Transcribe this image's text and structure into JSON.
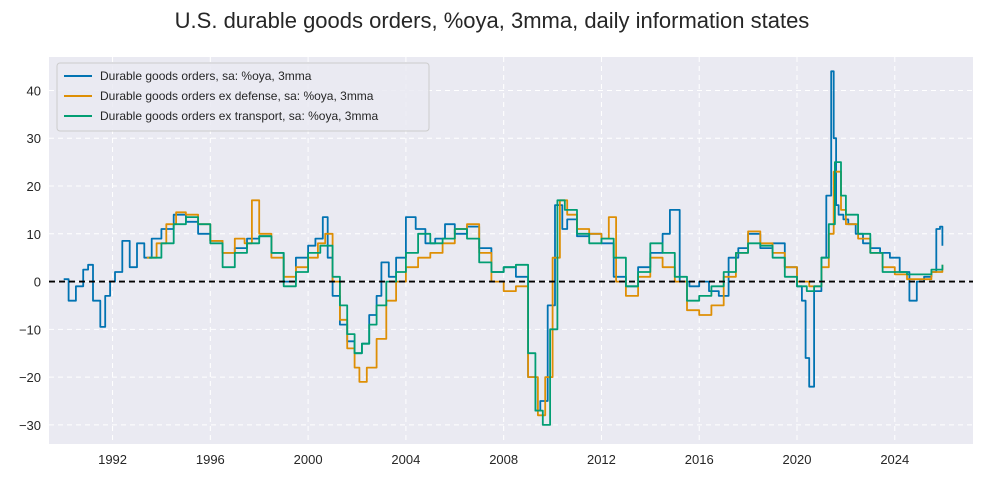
{
  "chart_data": {
    "type": "line",
    "title": "U.S. durable goods orders, %oya, 3mma, daily information states",
    "xlabel": "",
    "ylabel": "",
    "xlim": [
      1989.4,
      2027.2
    ],
    "ylim": [
      -34,
      47
    ],
    "x_ticks": [
      {
        "value": 1992,
        "label": "1992"
      },
      {
        "value": 1996,
        "label": "1996"
      },
      {
        "value": 2000,
        "label": "2000"
      },
      {
        "value": 2004,
        "label": "2004"
      },
      {
        "value": 2008,
        "label": "2008"
      },
      {
        "value": 2012,
        "label": "2012"
      },
      {
        "value": 2016,
        "label": "2016"
      },
      {
        "value": 2020,
        "label": "2020"
      },
      {
        "value": 2024,
        "label": "2024"
      }
    ],
    "y_ticks": [
      {
        "value": -30,
        "label": "−30"
      },
      {
        "value": -20,
        "label": "−20"
      },
      {
        "value": -10,
        "label": "−10"
      },
      {
        "value": 0,
        "label": "0"
      },
      {
        "value": 10,
        "label": "10"
      },
      {
        "value": 20,
        "label": "20"
      },
      {
        "value": 30,
        "label": "30"
      },
      {
        "value": 40,
        "label": "40"
      }
    ],
    "grid": true,
    "legend_position": "top-left",
    "reference_line": {
      "y": 0,
      "style": "dashed",
      "color": "#000000"
    },
    "series": [
      {
        "name": "Durable goods orders, sa: %oya, 3mma",
        "color": "#0173b2",
        "x": [
          1990.0,
          1990.2,
          1990.5,
          1990.8,
          1991.0,
          1991.2,
          1991.5,
          1991.7,
          1991.9,
          1992.1,
          1992.4,
          1992.7,
          1993.0,
          1993.3,
          1993.6,
          1994.0,
          1994.5,
          1995.0,
          1995.5,
          1996.0,
          1996.5,
          1997.0,
          1997.5,
          1998.0,
          1998.5,
          1999.0,
          1999.5,
          2000.0,
          2000.3,
          2000.6,
          2000.8,
          2001.0,
          2001.3,
          2001.6,
          2001.9,
          2002.2,
          2002.5,
          2002.8,
          2003.0,
          2003.3,
          2003.6,
          2004.0,
          2004.4,
          2004.8,
          2005.2,
          2005.6,
          2006.0,
          2006.5,
          2007.0,
          2007.5,
          2008.0,
          2008.5,
          2009.0,
          2009.3,
          2009.5,
          2009.8,
          2010.1,
          2010.4,
          2010.6,
          2011.0,
          2011.5,
          2012.0,
          2012.5,
          2013.0,
          2013.5,
          2014.0,
          2014.5,
          2014.8,
          2015.2,
          2015.6,
          2016.0,
          2016.4,
          2016.8,
          2017.2,
          2017.6,
          2018.0,
          2018.5,
          2019.0,
          2019.5,
          2020.0,
          2020.2,
          2020.35,
          2020.5,
          2020.7,
          2021.0,
          2021.2,
          2021.4,
          2021.5,
          2021.6,
          2021.7,
          2021.9,
          2022.1,
          2022.4,
          2022.7,
          2023.0,
          2023.4,
          2023.8,
          2024.2,
          2024.6,
          2024.9,
          2025.2,
          2025.5,
          2025.7,
          2025.85,
          2025.95
        ],
        "y": [
          0.5,
          -4.0,
          -1.0,
          2.5,
          3.5,
          -4.0,
          -9.5,
          -3.0,
          0.0,
          2.0,
          8.5,
          3.0,
          8.0,
          5.0,
          9.0,
          11.0,
          14.0,
          12.5,
          10.0,
          8.5,
          6.0,
          7.0,
          9.0,
          9.5,
          6.0,
          0.0,
          5.0,
          7.5,
          9.0,
          13.5,
          5.0,
          -3.0,
          -9.0,
          -12.5,
          -15.0,
          -13.0,
          -7.0,
          -3.0,
          4.0,
          1.0,
          5.0,
          13.5,
          11.0,
          8.0,
          9.0,
          12.0,
          10.0,
          11.5,
          7.0,
          2.0,
          3.0,
          1.0,
          -20.0,
          -27.0,
          -25.0,
          -5.0,
          16.0,
          11.0,
          13.0,
          9.5,
          10.0,
          8.0,
          1.0,
          -1.0,
          3.0,
          6.0,
          10.0,
          15.0,
          0.0,
          -1.0,
          0.0,
          -2.0,
          -3.0,
          5.0,
          7.0,
          10.0,
          7.0,
          8.0,
          3.0,
          -1.0,
          -4.0,
          -16.0,
          -22.0,
          -2.0,
          5.0,
          18.0,
          44.0,
          30.0,
          16.0,
          14.0,
          13.0,
          12.0,
          10.0,
          8.0,
          7.0,
          6.0,
          5.0,
          2.0,
          -4.0,
          0.0,
          1.0,
          2.0,
          11.0,
          11.5,
          7.5
        ]
      },
      {
        "name": "Durable goods orders ex defense, sa: %oya, 3mma",
        "color": "#de8f05",
        "x": [
          1993.4,
          1993.8,
          1994.2,
          1994.6,
          1995.0,
          1995.5,
          1996.0,
          1996.5,
          1997.0,
          1997.4,
          1997.7,
          1998.0,
          1998.5,
          1999.0,
          1999.5,
          2000.0,
          2000.4,
          2000.7,
          2001.0,
          2001.3,
          2001.6,
          2001.9,
          2002.1,
          2002.4,
          2002.8,
          2003.2,
          2003.6,
          2004.0,
          2004.5,
          2005.0,
          2005.5,
          2006.0,
          2006.5,
          2007.0,
          2007.5,
          2008.0,
          2008.5,
          2009.0,
          2009.4,
          2009.7,
          2010.0,
          2010.3,
          2010.6,
          2011.0,
          2011.5,
          2012.0,
          2012.3,
          2012.6,
          2013.0,
          2013.5,
          2014.0,
          2014.5,
          2015.0,
          2015.5,
          2016.0,
          2016.5,
          2017.0,
          2017.5,
          2018.0,
          2018.5,
          2019.0,
          2019.5,
          2020.0,
          2020.5,
          2020.8,
          2021.0,
          2021.3,
          2021.5,
          2021.8,
          2022.0,
          2022.5,
          2023.0,
          2023.5,
          2024.0,
          2024.5,
          2025.0,
          2025.5,
          2025.95
        ],
        "y": [
          5.0,
          8.0,
          12.0,
          14.5,
          14.0,
          12.0,
          8.5,
          6.0,
          9.0,
          8.0,
          17.0,
          10.0,
          5.0,
          1.0,
          3.0,
          5.0,
          8.0,
          10.0,
          0.0,
          -8.0,
          -14.0,
          -18.0,
          -21.0,
          -18.0,
          -12.0,
          -4.0,
          0.0,
          3.0,
          5.0,
          6.0,
          8.0,
          11.0,
          12.0,
          6.0,
          0.0,
          -2.0,
          -1.0,
          -20.0,
          -28.0,
          -20.0,
          5.0,
          17.0,
          14.0,
          11.0,
          10.0,
          9.0,
          13.5,
          0.0,
          -3.0,
          1.0,
          5.0,
          3.0,
          0.0,
          -6.0,
          -7.0,
          -5.0,
          1.0,
          6.0,
          10.5,
          8.0,
          6.0,
          3.0,
          0.0,
          -1.0,
          -1.0,
          3.0,
          10.0,
          23.0,
          15.0,
          12.0,
          9.0,
          6.0,
          3.0,
          1.5,
          0.5,
          0.5,
          2.0,
          3.5
        ]
      },
      {
        "name": "Durable goods orders ex transport, sa: %oya, 3mma",
        "color": "#029e73",
        "x": [
          1993.5,
          1994.0,
          1994.5,
          1995.0,
          1995.5,
          1996.0,
          1996.5,
          1997.0,
          1997.5,
          1998.0,
          1998.5,
          1999.0,
          1999.5,
          2000.0,
          2000.5,
          2001.0,
          2001.3,
          2001.6,
          2001.9,
          2002.2,
          2002.5,
          2002.8,
          2003.2,
          2003.6,
          2004.0,
          2004.5,
          2005.0,
          2005.5,
          2006.0,
          2006.5,
          2007.0,
          2007.5,
          2008.0,
          2008.5,
          2009.0,
          2009.3,
          2009.6,
          2009.9,
          2010.2,
          2010.5,
          2011.0,
          2011.5,
          2012.0,
          2012.5,
          2013.0,
          2013.5,
          2014.0,
          2014.5,
          2015.0,
          2015.5,
          2016.0,
          2016.5,
          2017.0,
          2017.5,
          2018.0,
          2018.5,
          2019.0,
          2019.5,
          2020.0,
          2020.4,
          2020.7,
          2021.0,
          2021.3,
          2021.55,
          2021.8,
          2022.0,
          2022.5,
          2023.0,
          2023.5,
          2024.0,
          2024.5,
          2025.0,
          2025.5,
          2025.95
        ],
        "y": [
          5.0,
          8.0,
          12.0,
          13.5,
          12.0,
          8.0,
          3.0,
          6.0,
          8.0,
          9.5,
          6.0,
          -1.0,
          2.0,
          6.0,
          7.5,
          1.0,
          -5.0,
          -11.0,
          -15.0,
          -13.0,
          -9.0,
          -5.0,
          0.0,
          2.0,
          6.0,
          10.0,
          8.0,
          9.0,
          11.0,
          9.0,
          4.0,
          2.0,
          3.0,
          3.5,
          -15.0,
          -27.0,
          -30.0,
          -10.0,
          17.0,
          15.0,
          10.0,
          8.0,
          9.0,
          5.0,
          -1.0,
          2.0,
          8.0,
          6.0,
          1.0,
          -4.0,
          -3.0,
          -1.0,
          2.0,
          6.0,
          8.0,
          7.5,
          5.0,
          1.0,
          -1.0,
          -2.0,
          -1.0,
          5.0,
          12.0,
          25.0,
          18.0,
          14.0,
          10.0,
          6.0,
          2.0,
          2.0,
          1.5,
          1.5,
          2.5,
          3.5
        ]
      }
    ]
  }
}
